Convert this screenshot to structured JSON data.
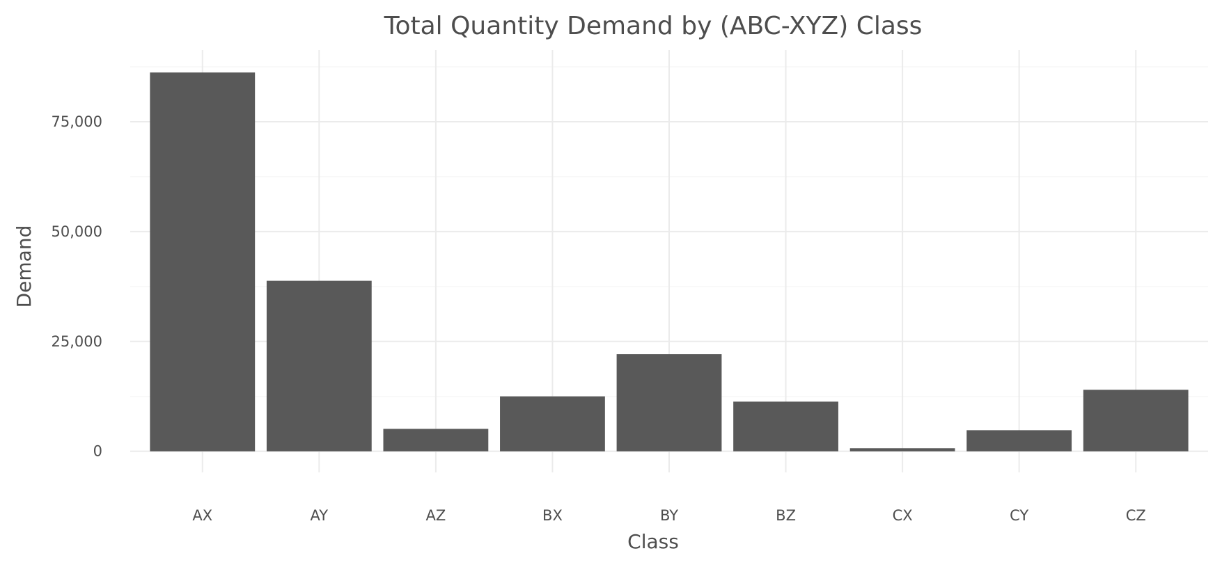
{
  "chart_data": {
    "type": "bar",
    "title": "Total Quantity Demand by (ABC-XYZ) Class",
    "xlabel": "Class",
    "ylabel": "Demand",
    "categories": [
      "AX",
      "AY",
      "AZ",
      "BX",
      "BY",
      "BZ",
      "CX",
      "CY",
      "CZ"
    ],
    "values": [
      86200,
      38800,
      5100,
      12500,
      22100,
      11300,
      700,
      4800,
      14000
    ],
    "ylim": [
      -4800,
      91300
    ],
    "yticks": [
      0,
      25000,
      50000,
      75000
    ],
    "ytick_labels": [
      "0",
      "25,000",
      "50,000",
      "75,000"
    ],
    "grid": true,
    "legend": "none",
    "bar_color": "#595959"
  }
}
